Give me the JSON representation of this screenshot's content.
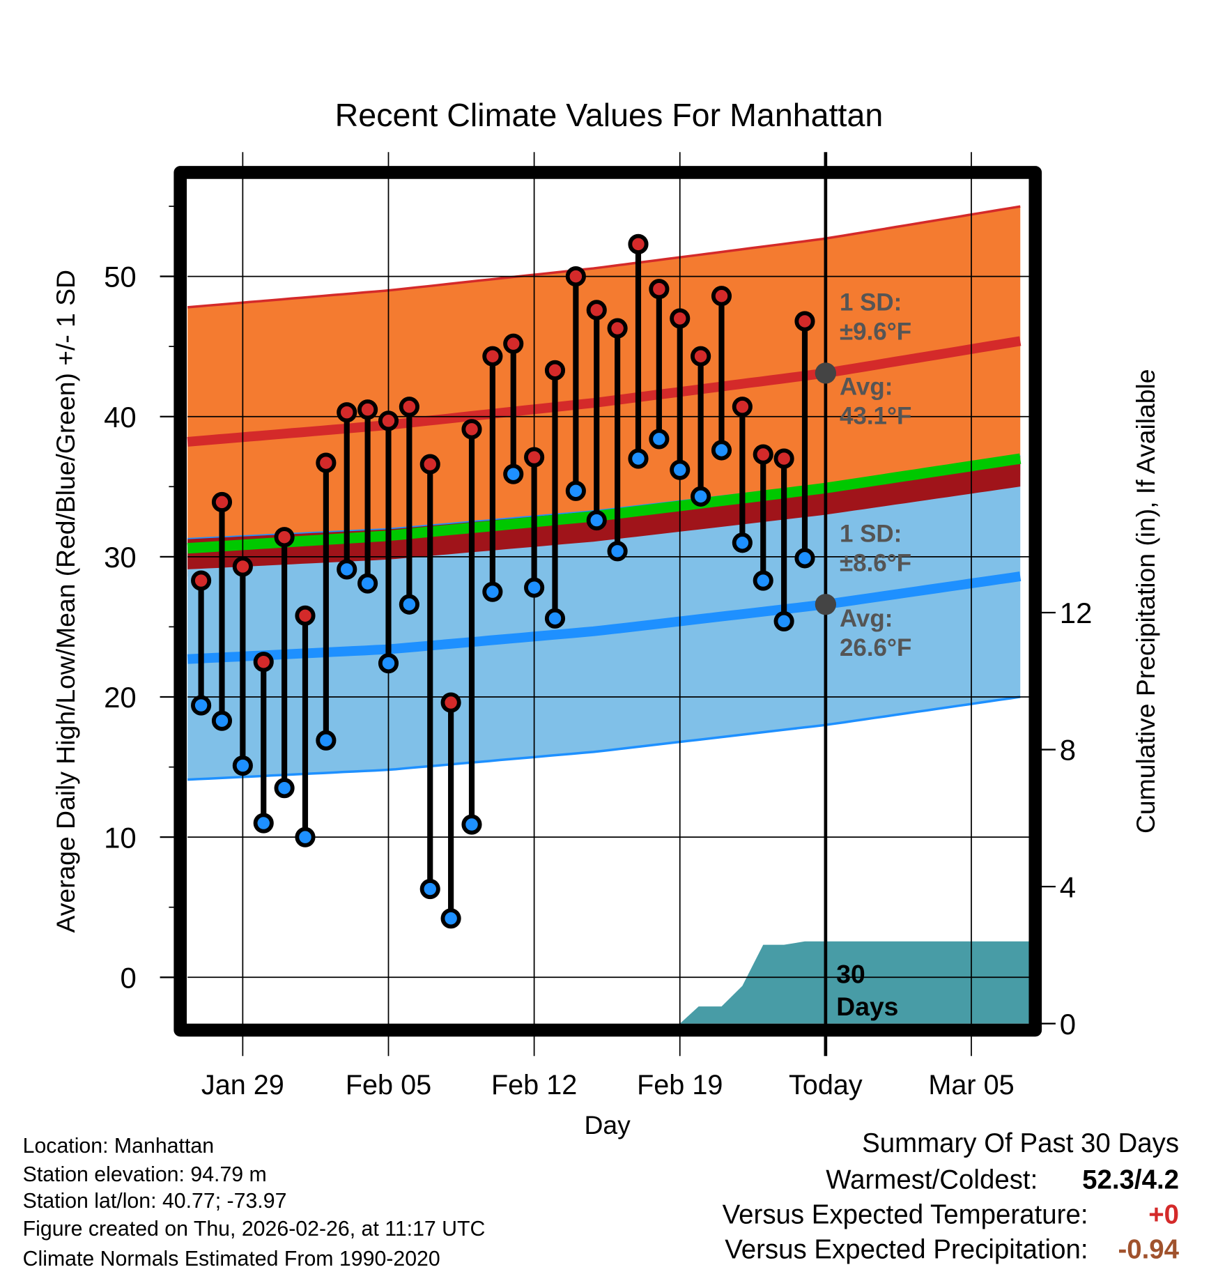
{
  "chart_data": {
    "type": "line",
    "title": "Recent Climate Values For Manhattan",
    "xlabel": "Day",
    "ylabel": "Average Daily High/Low/Mean (Red/Blue/Green) +/- 1 SD",
    "y2label": "Cumulative Precipitation (in), If Available",
    "ylim": [
      -3.3,
      57.5
    ],
    "y2lim": [
      0,
      14.3
    ],
    "yticks": [
      "0",
      "10",
      "20",
      "30",
      "40",
      "50"
    ],
    "y2ticks": [
      "0",
      "4",
      "8",
      "12"
    ],
    "xticks": [
      {
        "day": 3,
        "label": "Jan 29"
      },
      {
        "day": 10,
        "label": "Feb 05"
      },
      {
        "day": 17,
        "label": "Feb 12"
      },
      {
        "day": 24,
        "label": "Feb 19"
      },
      {
        "day": 31,
        "label": "Today"
      },
      {
        "day": 38,
        "label": "Mar 05"
      }
    ],
    "xrange_days_from_jan26": [
      0.35,
      40.8
    ],
    "today_day": 31,
    "observed": {
      "dates": [
        "Jan 27",
        "Jan 28",
        "Jan 29",
        "Jan 30",
        "Jan 31",
        "Feb 01",
        "Feb 02",
        "Feb 03",
        "Feb 04",
        "Feb 05",
        "Feb 06",
        "Feb 07",
        "Feb 08",
        "Feb 09",
        "Feb 10",
        "Feb 11",
        "Feb 12",
        "Feb 13",
        "Feb 14",
        "Feb 15",
        "Feb 16",
        "Feb 17",
        "Feb 18",
        "Feb 19",
        "Feb 20",
        "Feb 21",
        "Feb 22",
        "Feb 23",
        "Feb 24",
        "Feb 25"
      ],
      "high": [
        28.3,
        33.9,
        29.3,
        22.5,
        31.4,
        25.8,
        36.7,
        40.3,
        40.5,
        39.7,
        40.7,
        36.6,
        19.6,
        39.1,
        44.3,
        45.2,
        37.1,
        43.3,
        50.0,
        47.6,
        46.3,
        52.3,
        49.1,
        47.0,
        44.3,
        48.6,
        40.7,
        37.3,
        37.0,
        46.8
      ],
      "low": [
        19.4,
        18.3,
        15.1,
        11.0,
        13.5,
        10.0,
        16.9,
        29.1,
        28.1,
        22.4,
        26.6,
        6.3,
        4.2,
        10.9,
        27.5,
        35.9,
        27.8,
        25.6,
        34.7,
        32.6,
        30.4,
        37.0,
        38.4,
        36.2,
        34.3,
        37.6,
        31.0,
        28.3,
        25.4,
        29.9
      ]
    },
    "normals": {
      "days": [
        0.35,
        10,
        20,
        31,
        40.8
      ],
      "high_avg": [
        38.2,
        39.4,
        41.0,
        43.1,
        45.5
      ],
      "low_avg": [
        22.7,
        23.4,
        24.7,
        26.6,
        28.7
      ],
      "mean": [
        30.6,
        31.5,
        32.9,
        34.9,
        37.1
      ],
      "high_sd": 9.6,
      "low_sd": 8.6
    },
    "precipitation": {
      "days": [
        24,
        24.9,
        26,
        27,
        28,
        29,
        30,
        40.8
      ],
      "cumulative_in": [
        0,
        0.5,
        0.5,
        1.1,
        2.3,
        2.3,
        2.4,
        2.4
      ]
    },
    "annotations": {
      "high_sd_label": "1 SD:",
      "high_sd_value": "±9.6°F",
      "high_avg_label": "Avg:",
      "high_avg_value": "43.1°F",
      "low_sd_label": "1 SD:",
      "low_sd_value": "±8.6°F",
      "low_avg_label": "Avg:",
      "low_avg_value": "26.6°F",
      "precip_label_1": "30",
      "precip_label_2": "Days"
    },
    "colors": {
      "high": "#d42a2a",
      "low": "#1e90ff",
      "orange_band": "#f47b30",
      "blue_band": "#80c0e8",
      "mean": "#00c800",
      "overlap": "#a0141a",
      "precip": "#489ca6"
    }
  },
  "footer": {
    "location": "Location: Manhattan",
    "elevation": "Station elevation: 94.79 m",
    "latlon": "Station lat/lon: 40.77; -73.97",
    "created": "Figure created on Thu, 2026-02-26, at 11:17 UTC",
    "normals": "Climate Normals Estimated From 1990-2020"
  },
  "summary": {
    "title": "Summary Of Past 30 Days",
    "warmest_label": "Warmest/Coldest:",
    "warmest_value": "52.3/4.2",
    "temp_label": "Versus Expected Temperature:",
    "temp_value": "+0",
    "temp_color": "#d42a2a",
    "precip_label": "Versus Expected Precipitation:",
    "precip_value": "-0.94",
    "precip_color": "#a0522d"
  }
}
